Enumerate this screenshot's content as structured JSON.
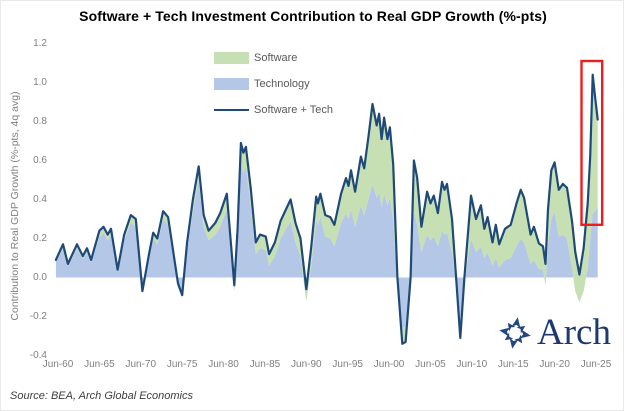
{
  "title": "Software + Tech Investment Contribution to Real GDP Growth (%-pts)",
  "source_note": "Source: BEA, Arch Global Economics",
  "logo": {
    "text": "Arch"
  },
  "colors": {
    "software_fill": "#c6e0b4",
    "technology_fill": "#b4c7e7",
    "total_line": "#1f4a78",
    "highlight_box": "#ee1c1c",
    "tick_text": "#7f7f7f",
    "logo_navy": "#24477f"
  },
  "legend": {
    "items": [
      {
        "label": "Software",
        "swatch": "area",
        "color": "#c6e0b4"
      },
      {
        "label": "Technology",
        "swatch": "area",
        "color": "#b4c7e7"
      },
      {
        "label": "Software + Tech",
        "swatch": "line",
        "color": "#1f4a78"
      }
    ]
  },
  "chart_data": {
    "type": "area",
    "stacked": true,
    "title": "Software + Tech Investment Contribution to Real GDP Growth (%-pts)",
    "xlabel": "",
    "ylabel": "Contribution to Real GDP Growth (%-pts, 4q avg)",
    "ylim": [
      -0.4,
      1.2
    ],
    "grid": false,
    "legend_position": "top-center-inside",
    "ytick_labels": [
      "1.2",
      "1.0",
      "0.8",
      "0.6",
      "0.4",
      "0.2",
      "0.0",
      "-0.2",
      "-0.4"
    ],
    "ytick_values": [
      1.2,
      1.0,
      0.8,
      0.6,
      0.4,
      0.2,
      0.0,
      -0.2,
      -0.4
    ],
    "xtick_labels": [
      "Jun-60",
      "Jun-65",
      "Jun-70",
      "Jun-75",
      "Jun-80",
      "Jun-85",
      "Jun-90",
      "Jun-95",
      "Jun-00",
      "Jun-05",
      "Jun-10",
      "Jun-15",
      "Jun-20",
      "Jun-25"
    ],
    "xtick_years": [
      1960,
      1965,
      1970,
      1975,
      1980,
      1985,
      1990,
      1995,
      2000,
      2005,
      2010,
      2015,
      2020,
      2025
    ],
    "x": [
      1959.75,
      1960.6,
      1961.2,
      1962.3,
      1963.0,
      1963.5,
      1964.0,
      1965.0,
      1965.5,
      1966.0,
      1966.4,
      1967.2,
      1968.0,
      1968.8,
      1969.4,
      1970.2,
      1971.0,
      1971.5,
      1972.0,
      1972.7,
      1973.3,
      1974.0,
      1974.5,
      1975.0,
      1975.6,
      1976.3,
      1977.0,
      1977.6,
      1978.2,
      1979.0,
      1979.6,
      1980.4,
      1981.0,
      1981.3,
      1981.7,
      1982.1,
      1982.4,
      1982.7,
      1983.3,
      1983.9,
      1984.4,
      1985.1,
      1985.5,
      1986.2,
      1986.9,
      1988.1,
      1988.7,
      1989.3,
      1990.0,
      1990.6,
      1991.2,
      1991.4,
      1991.7,
      1992.3,
      1992.9,
      1993.4,
      1994.2,
      1994.8,
      1995.1,
      1995.4,
      1995.9,
      1996.6,
      1997.0,
      1997.5,
      1998.0,
      1998.5,
      1998.8,
      1999.1,
      1999.4,
      1999.8,
      2000.1,
      2000.5,
      2001.0,
      2001.6,
      2002.0,
      2002.6,
      2003.0,
      2003.4,
      2003.9,
      2004.6,
      2005.0,
      2005.4,
      2005.9,
      2006.4,
      2006.7,
      2007.0,
      2007.6,
      2008.1,
      2008.6,
      2009.1,
      2009.9,
      2010.5,
      2011.1,
      2011.5,
      2011.9,
      2012.5,
      2012.9,
      2013.3,
      2014.0,
      2014.7,
      2015.4,
      2015.9,
      2016.3,
      2017.1,
      2017.5,
      2018.1,
      2018.6,
      2018.9,
      2019.2,
      2019.6,
      2020.0,
      2020.5,
      2021.0,
      2021.5,
      2022.1,
      2022.5,
      2023.0,
      2023.5,
      2024.0,
      2024.3,
      2024.6,
      2024.9,
      2025.2
    ],
    "series": [
      {
        "name": "Software",
        "type": "area",
        "color": "#c6e0b4",
        "values": [
          0.01,
          0.02,
          0.01,
          0.02,
          0.015,
          0.02,
          0.015,
          0.03,
          0.03,
          0.03,
          0.03,
          0.01,
          0.03,
          0.04,
          0.04,
          0.01,
          0.02,
          0.03,
          0.03,
          0.04,
          0.04,
          0.03,
          0.02,
          0.01,
          0.04,
          0.06,
          0.07,
          0.06,
          0.05,
          0.06,
          0.07,
          0.08,
          0.05,
          0.03,
          0.07,
          0.11,
          0.1,
          0.1,
          0.09,
          0.06,
          0.07,
          0.07,
          0.06,
          0.07,
          0.09,
          0.11,
          0.1,
          0.09,
          0.06,
          0.1,
          0.12,
          0.11,
          0.12,
          0.11,
          0.11,
          0.11,
          0.15,
          0.18,
          0.17,
          0.2,
          0.18,
          0.25,
          0.24,
          0.32,
          0.41,
          0.37,
          0.4,
          0.35,
          0.39,
          0.34,
          0.36,
          0.28,
          0.05,
          -0.08,
          -0.08,
          -0.01,
          0.26,
          0.24,
          0.13,
          0.22,
          0.19,
          0.21,
          0.17,
          0.25,
          0.23,
          0.25,
          0.17,
          0.03,
          -0.09,
          0.02,
          0.22,
          0.17,
          0.21,
          0.15,
          0.18,
          0.12,
          0.17,
          0.12,
          0.16,
          0.17,
          0.22,
          0.25,
          0.23,
          0.15,
          0.17,
          0.13,
          0.12,
          0.11,
          0.18,
          0.25,
          0.25,
          0.24,
          0.26,
          0.26,
          0.24,
          0.2,
          0.14,
          0.22,
          0.33,
          0.42,
          0.71,
          0.58,
          0.45
        ]
      },
      {
        "name": "Technology",
        "type": "area",
        "color": "#b4c7e7",
        "values": [
          0.08,
          0.15,
          0.06,
          0.15,
          0.095,
          0.13,
          0.075,
          0.21,
          0.23,
          0.19,
          0.22,
          0.03,
          0.19,
          0.28,
          0.26,
          -0.08,
          0.1,
          0.2,
          0.17,
          0.3,
          0.27,
          0.08,
          -0.05,
          -0.1,
          0.14,
          0.34,
          0.5,
          0.26,
          0.19,
          0.22,
          0.26,
          0.35,
          0.07,
          -0.07,
          0.18,
          0.58,
          0.54,
          0.57,
          0.36,
          0.12,
          0.15,
          0.14,
          0.06,
          0.11,
          0.2,
          0.29,
          0.18,
          0.11,
          -0.12,
          0.06,
          0.295,
          0.27,
          0.31,
          0.21,
          0.2,
          0.16,
          0.28,
          0.33,
          0.3,
          0.35,
          0.26,
          0.37,
          0.32,
          0.4,
          0.48,
          0.41,
          0.44,
          0.36,
          0.43,
          0.37,
          0.41,
          0.3,
          -0.05,
          -0.26,
          -0.25,
          0.01,
          0.34,
          0.27,
          0.13,
          0.22,
          0.19,
          0.21,
          0.16,
          0.24,
          0.22,
          0.23,
          0.13,
          -0.03,
          -0.22,
          -0.02,
          0.2,
          0.13,
          0.16,
          0.1,
          0.13,
          0.06,
          0.1,
          0.05,
          0.09,
          0.1,
          0.16,
          0.2,
          0.18,
          0.07,
          0.09,
          0.045,
          0.04,
          -0.04,
          0.17,
          0.3,
          0.34,
          0.21,
          0.22,
          0.2,
          0.05,
          -0.07,
          -0.125,
          -0.07,
          0.05,
          0.2,
          0.33,
          0.34,
          0.36
        ]
      },
      {
        "name": "Software + Tech",
        "type": "line",
        "color": "#1f4a78",
        "derived": "sum_of_areas"
      }
    ],
    "annotation": {
      "shape": "rect",
      "meaning": "highlight of latest surge",
      "x1": 2023.25,
      "x2": 2025.75,
      "y1": 0.27,
      "y2": 1.11,
      "color": "#ee1c1c"
    }
  }
}
